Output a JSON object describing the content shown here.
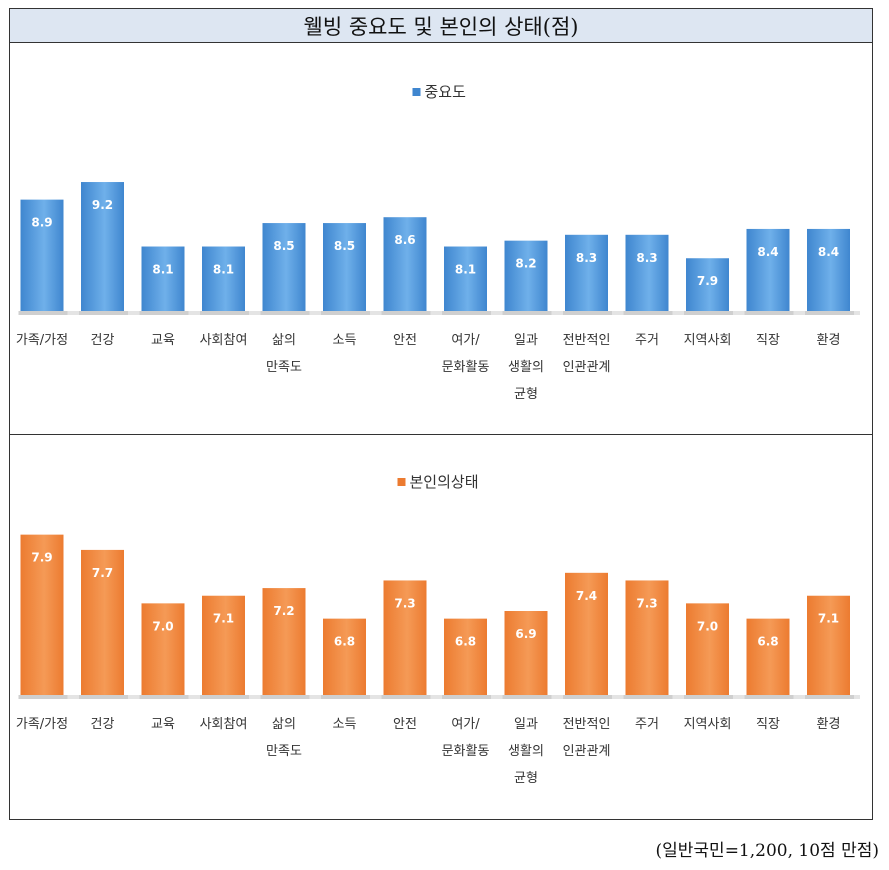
{
  "title": "웰빙 중요도 및 본인의 상태(점)",
  "note": "(일반국민=1,200, 10점 만점)",
  "chart_data": [
    {
      "type": "bar",
      "legend": "중요도",
      "color": "#3f86cf",
      "categories": [
        "가족/가정",
        "건강",
        "교육",
        "사회참여",
        "삶의 만족도",
        "소득",
        "안전",
        "여가/ 문화활동",
        "일과 생활의 균형",
        "전반적인 인관관계",
        "주거",
        "지역사회",
        "직장",
        "환경"
      ],
      "category_lines": [
        [
          "가족/가정"
        ],
        [
          "건강"
        ],
        [
          "교육"
        ],
        [
          "사회참여"
        ],
        [
          "삶의",
          "만족도"
        ],
        [
          "소득"
        ],
        [
          "안전"
        ],
        [
          "여가/",
          "문화활동"
        ],
        [
          "일과",
          "생활의",
          "균형"
        ],
        [
          "전반적인",
          "인관관계"
        ],
        [
          "주거"
        ],
        [
          "지역사회"
        ],
        [
          "직장"
        ],
        [
          "환경"
        ]
      ],
      "values": [
        8.9,
        9.2,
        8.1,
        8.1,
        8.5,
        8.5,
        8.6,
        8.1,
        8.2,
        8.3,
        8.3,
        7.9,
        8.4,
        8.4
      ],
      "value_labels": [
        "8.9",
        "9.2",
        "8.1",
        "8.1",
        "8.5",
        "8.5",
        "8.6",
        "8.1",
        "8.2",
        "8.3",
        "8.3",
        "7.9",
        "8.4",
        "8.4"
      ]
    },
    {
      "type": "bar",
      "legend": "본인의상태",
      "color": "#ec7b30",
      "categories": [
        "가족/가정",
        "건강",
        "교육",
        "사회참여",
        "삶의 만족도",
        "소득",
        "안전",
        "여가/ 문화활동",
        "일과 생활의 균형",
        "전반적인 인관관계",
        "주거",
        "지역사회",
        "직장",
        "환경"
      ],
      "category_lines": [
        [
          "가족/가정"
        ],
        [
          "건강"
        ],
        [
          "교육"
        ],
        [
          "사회참여"
        ],
        [
          "삶의",
          "만족도"
        ],
        [
          "소득"
        ],
        [
          "안전"
        ],
        [
          "여가/",
          "문화활동"
        ],
        [
          "일과",
          "생활의",
          "균형"
        ],
        [
          "전반적인",
          "인관관계"
        ],
        [
          "주거"
        ],
        [
          "지역사회"
        ],
        [
          "직장"
        ],
        [
          "환경"
        ]
      ],
      "values": [
        7.9,
        7.7,
        7.0,
        7.1,
        7.2,
        6.8,
        7.3,
        6.8,
        6.9,
        7.4,
        7.3,
        7.0,
        6.8,
        7.1
      ],
      "value_labels": [
        "7.9",
        "7.7",
        "7.0",
        "7.1",
        "7.2",
        "6.8",
        "7.3",
        "6.8",
        "6.9",
        "7.4",
        "7.3",
        "7.0",
        "6.8",
        "7.1"
      ]
    }
  ]
}
